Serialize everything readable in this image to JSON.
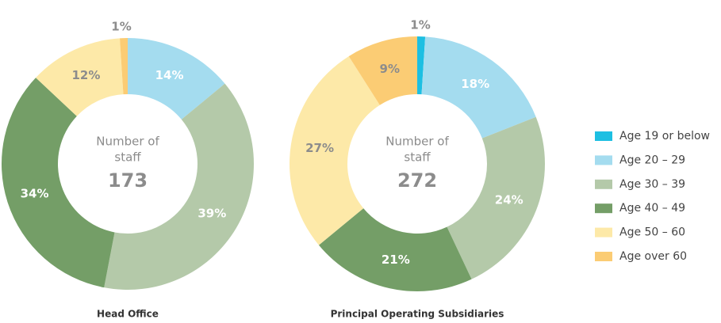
{
  "legend": {
    "categories": [
      "Age 19 or below",
      "Age 20 – 29",
      "Age 30 – 39",
      "Age 40 – 49",
      "Age 50 – 60",
      "Age over 60"
    ],
    "colors": [
      "#1dbfe2",
      "#a4dcef",
      "#b4c9a9",
      "#749e67",
      "#fde9a8",
      "#fbcc74"
    ]
  },
  "chart_data": [
    {
      "type": "donut",
      "title": "Head Office",
      "center_label": [
        "Number of",
        "staff"
      ],
      "total": 173,
      "values": [
        null,
        14,
        39,
        34,
        12,
        1
      ],
      "value_labels": [
        null,
        "14%",
        "39%",
        "34%",
        "12%",
        "1%"
      ]
    },
    {
      "type": "donut",
      "title": "Principal Operating Subsidiaries",
      "center_label": [
        "Number of",
        "staff"
      ],
      "total": 272,
      "values": [
        1,
        18,
        24,
        21,
        27,
        9
      ],
      "value_labels": [
        "1%",
        "18%",
        "24%",
        "21%",
        "27%",
        "9%"
      ]
    }
  ]
}
